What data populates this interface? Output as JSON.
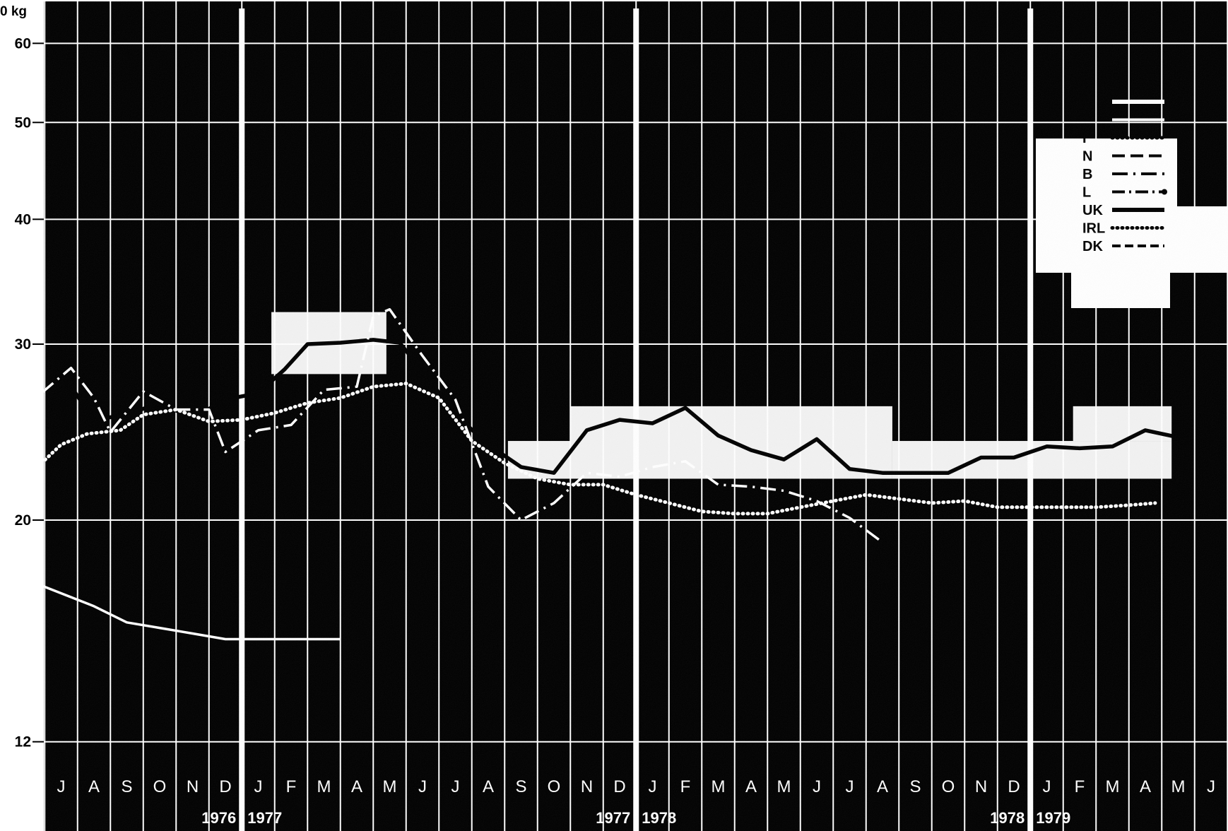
{
  "chart_data": {
    "type": "line",
    "y_unit_label": "0 kg",
    "y_scale": "log",
    "ylim": [
      10.8,
      65
    ],
    "y_ticks": [
      12,
      20,
      30,
      40,
      50,
      60
    ],
    "grid": true,
    "legend_position": "top-right",
    "months": [
      "J",
      "A",
      "S",
      "O",
      "N",
      "D",
      "J",
      "F",
      "M",
      "A",
      "M",
      "J",
      "J",
      "A",
      "S",
      "O",
      "N",
      "D",
      "J",
      "F",
      "M",
      "A",
      "M",
      "J",
      "J",
      "A",
      "S",
      "O",
      "N",
      "D",
      "J",
      "F",
      "M",
      "A",
      "M",
      "J"
    ],
    "year_labels": [
      {
        "left": "1976",
        "right": "1977",
        "after_month_index": 5
      },
      {
        "left": "1977",
        "right": "1978",
        "after_month_index": 17
      },
      {
        "left": "1978",
        "right": "1979",
        "after_month_index": 29
      }
    ],
    "legend": [
      {
        "key": "",
        "style": "solid-thick"
      },
      {
        "key": "",
        "style": "solid"
      },
      {
        "key": "I",
        "style": "dotted"
      },
      {
        "key": "N",
        "style": "dash-long"
      },
      {
        "key": "B",
        "style": "dash-dot"
      },
      {
        "key": "L",
        "style": "dash-dot-circle"
      },
      {
        "key": "UK",
        "style": "solid-thick"
      },
      {
        "key": "IRL",
        "style": "dotted"
      },
      {
        "key": "DK",
        "style": "dashed"
      }
    ],
    "series": [
      {
        "name": "UK",
        "color": "#000000",
        "style": "solid-thick",
        "points": [
          [
            -0.4,
            26.8
          ],
          [
            0.2,
            27.5
          ],
          [
            1,
            25.2
          ],
          [
            2,
            25.5
          ],
          [
            3,
            26.2
          ],
          [
            4,
            25.3
          ],
          [
            5,
            26.4
          ],
          [
            6,
            26.8
          ],
          [
            6.8,
            28.3
          ],
          [
            7.5,
            30.0
          ],
          [
            8.5,
            30.1
          ],
          [
            9.5,
            30.3
          ],
          [
            10.3,
            30.1
          ],
          [
            11,
            28.2
          ],
          [
            12,
            25.5
          ],
          [
            13,
            23.8
          ],
          [
            14,
            22.6
          ],
          [
            15,
            22.3
          ],
          [
            16,
            24.6
          ],
          [
            17,
            25.2
          ],
          [
            18,
            25.0
          ],
          [
            19,
            25.9
          ],
          [
            20,
            24.3
          ],
          [
            21,
            23.5
          ],
          [
            22,
            23.0
          ],
          [
            23,
            24.1
          ],
          [
            24,
            22.5
          ],
          [
            25,
            22.3
          ],
          [
            26,
            22.3
          ],
          [
            27,
            22.3
          ],
          [
            28,
            23.1
          ],
          [
            29,
            23.1
          ],
          [
            30,
            23.7
          ],
          [
            31,
            23.6
          ],
          [
            32,
            23.7
          ],
          [
            33,
            24.6
          ],
          [
            34,
            24.2
          ]
        ]
      },
      {
        "name": "IRL",
        "color": "#ffffff",
        "style": "dotted",
        "points": [
          [
            -0.6,
            22.8
          ],
          [
            0,
            23.8
          ],
          [
            0.8,
            24.4
          ],
          [
            1.8,
            24.6
          ],
          [
            2.5,
            25.5
          ],
          [
            3.5,
            25.8
          ],
          [
            4.5,
            25.1
          ],
          [
            5.5,
            25.2
          ],
          [
            6.5,
            25.6
          ],
          [
            7.5,
            26.2
          ],
          [
            8.5,
            26.5
          ],
          [
            9.5,
            27.2
          ],
          [
            10.5,
            27.4
          ],
          [
            11.5,
            26.5
          ],
          [
            12.5,
            24.0
          ],
          [
            13.5,
            22.8
          ],
          [
            14.5,
            22.0
          ],
          [
            15.5,
            21.7
          ],
          [
            16.5,
            21.7
          ],
          [
            17.5,
            21.2
          ],
          [
            18.5,
            20.8
          ],
          [
            19.5,
            20.4
          ],
          [
            20.5,
            20.3
          ],
          [
            21.5,
            20.3
          ],
          [
            22.5,
            20.6
          ],
          [
            23.5,
            20.9
          ],
          [
            24.5,
            21.2
          ],
          [
            25.5,
            21.0
          ],
          [
            26.5,
            20.8
          ],
          [
            27.5,
            20.9
          ],
          [
            28.5,
            20.6
          ],
          [
            29.5,
            20.6
          ],
          [
            30.5,
            20.6
          ],
          [
            31.5,
            20.6
          ],
          [
            32.5,
            20.7
          ],
          [
            33.3,
            20.8
          ]
        ]
      },
      {
        "name": "B",
        "color": "#ffffff",
        "style": "dash-dot",
        "points": [
          [
            -0.6,
            26.8
          ],
          [
            0.3,
            28.4
          ],
          [
            1,
            26.5
          ],
          [
            1.5,
            24.5
          ],
          [
            2.5,
            26.9
          ],
          [
            3.5,
            25.8
          ],
          [
            4.5,
            25.8
          ],
          [
            5,
            23.4
          ],
          [
            6,
            24.6
          ],
          [
            7,
            24.9
          ],
          [
            8,
            27.0
          ],
          [
            9,
            27.2
          ],
          [
            9.5,
            32.0
          ],
          [
            10,
            32.5
          ],
          [
            11,
            29.2
          ],
          [
            12,
            26.4
          ],
          [
            13,
            21.6
          ],
          [
            14,
            20.0
          ],
          [
            15,
            20.8
          ],
          [
            16,
            22.3
          ],
          [
            17,
            22.1
          ],
          [
            18,
            22.6
          ],
          [
            19,
            22.9
          ],
          [
            20,
            21.7
          ],
          [
            21,
            21.6
          ],
          [
            22,
            21.4
          ],
          [
            23,
            20.9
          ],
          [
            24,
            20.1
          ],
          [
            25,
            19.0
          ]
        ]
      },
      {
        "name": "",
        "color": "#ffffff",
        "style": "solid",
        "points": [
          [
            -0.6,
            17.2
          ],
          [
            1,
            16.4
          ],
          [
            2,
            15.8
          ],
          [
            3,
            15.6
          ],
          [
            4,
            15.4
          ],
          [
            5,
            15.2
          ],
          [
            6,
            15.2
          ],
          [
            8.5,
            15.2
          ]
        ]
      }
    ]
  }
}
